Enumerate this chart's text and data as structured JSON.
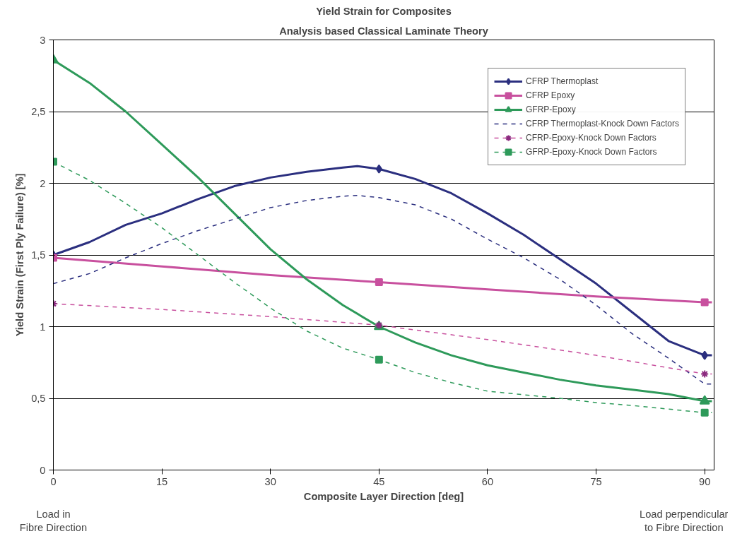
{
  "chart_data": {
    "type": "line",
    "title": "Yield Strain for Composites",
    "subtitle": "Analysis based Classical Laminate Theory",
    "xlabel": "Composite Layer Direction [deg]",
    "ylabel": "Yield Strain (First Ply Failure) [%]",
    "annotations": [
      "Load in\nFibre Direction",
      "Load perpendicular\nto Fibre Direction"
    ],
    "xlim": [
      0,
      91.3
    ],
    "xticks": [
      0,
      15,
      30,
      45,
      60,
      75,
      90
    ],
    "ylim": [
      0,
      3
    ],
    "yticks": [
      0,
      {
        "value": 0.5,
        "label": "0,5"
      },
      1,
      {
        "value": 1.5,
        "label": "1,5"
      },
      2,
      {
        "value": 2.5,
        "label": "2,5"
      },
      3
    ],
    "grid": "y",
    "legend": "top right",
    "series": [
      {
        "name": "CFRP Thermoplast",
        "color": "#2b2f7f",
        "line_style": "solid",
        "x": [
          0,
          5,
          10,
          15,
          20,
          25,
          30,
          35,
          40,
          42,
          45,
          50,
          55,
          60,
          65,
          70,
          75,
          80,
          85,
          90,
          91
        ],
        "values": [
          1.5,
          1.59,
          1.71,
          1.79,
          1.89,
          1.98,
          2.04,
          2.08,
          2.11,
          2.12,
          2.1,
          2.03,
          1.93,
          1.79,
          1.64,
          1.47,
          1.3,
          1.1,
          0.9,
          0.8,
          0.8
        ]
      },
      {
        "type": "scatter",
        "marker": "diamond",
        "color": "#2b2f7f",
        "x": [
          0,
          45,
          90
        ],
        "values": [
          1.5,
          2.1,
          0.8
        ]
      },
      {
        "name": "CFRP Epoxy",
        "color": "#c8509e",
        "line_style": "solid",
        "x": [
          0,
          15,
          30,
          45,
          60,
          75,
          90,
          91
        ],
        "values": [
          1.48,
          1.42,
          1.36,
          1.31,
          1.26,
          1.21,
          1.17,
          1.17
        ]
      },
      {
        "type": "scatter",
        "marker": "square",
        "color": "#c8509e",
        "x": [
          0,
          45,
          90
        ],
        "values": [
          1.48,
          1.31,
          1.17
        ]
      },
      {
        "name": "GFRP-Epoxy",
        "color": "#2e9a5a",
        "line_style": "solid",
        "x": [
          0,
          5,
          10,
          15,
          20,
          25,
          30,
          35,
          40,
          45,
          50,
          55,
          60,
          65,
          70,
          75,
          80,
          85,
          90,
          91
        ],
        "values": [
          2.86,
          2.7,
          2.5,
          2.27,
          2.04,
          1.79,
          1.54,
          1.33,
          1.15,
          1.0,
          0.89,
          0.8,
          0.73,
          0.68,
          0.63,
          0.59,
          0.56,
          0.53,
          0.48,
          0.48
        ]
      },
      {
        "type": "scatter",
        "marker": "triangle",
        "color": "#2e9a5a",
        "x": [
          0,
          45,
          90
        ],
        "values": [
          2.86,
          1.0,
          0.48
        ]
      },
      {
        "name": "CFRP Thermoplast-Knock Down Factors",
        "color": "#2b2f7f",
        "line_style": "dashed",
        "x": [
          0,
          5,
          10,
          15,
          20,
          25,
          30,
          35,
          40,
          42,
          45,
          50,
          55,
          60,
          65,
          70,
          75,
          80,
          85,
          90,
          91
        ],
        "values": [
          1.3,
          1.37,
          1.48,
          1.58,
          1.67,
          1.75,
          1.83,
          1.88,
          1.91,
          1.915,
          1.9,
          1.85,
          1.75,
          1.61,
          1.48,
          1.33,
          1.15,
          0.95,
          0.78,
          0.6,
          0.6
        ]
      },
      {
        "name": "CFRP-Epoxy-Knock Down Factors",
        "color": "#c8509e",
        "line_style": "dashed",
        "x": [
          0,
          15,
          30,
          45,
          60,
          75,
          90,
          91
        ],
        "values": [
          1.16,
          1.12,
          1.07,
          1.01,
          0.91,
          0.8,
          0.67,
          0.67
        ]
      },
      {
        "type": "scatter",
        "marker": "cross",
        "color": "#8b2a7f",
        "x": [
          0,
          45,
          90
        ],
        "values": [
          1.16,
          1.01,
          0.67
        ]
      },
      {
        "name": "GFRP-Epoxy-Knock Down Factors",
        "color": "#2e9a5a",
        "line_style": "dashed",
        "x": [
          0,
          5,
          10,
          15,
          20,
          25,
          30,
          35,
          40,
          45,
          50,
          55,
          60,
          70,
          75,
          80,
          90,
          91
        ],
        "values": [
          2.15,
          2.02,
          1.86,
          1.69,
          1.5,
          1.31,
          1.13,
          0.97,
          0.85,
          0.77,
          0.68,
          0.61,
          0.55,
          0.5,
          0.47,
          0.45,
          0.4,
          0.4
        ]
      },
      {
        "type": "scatter",
        "marker": "square",
        "color": "#2e9a5a",
        "x": [
          0,
          45,
          90
        ],
        "values": [
          2.15,
          0.77,
          0.4
        ]
      }
    ]
  }
}
